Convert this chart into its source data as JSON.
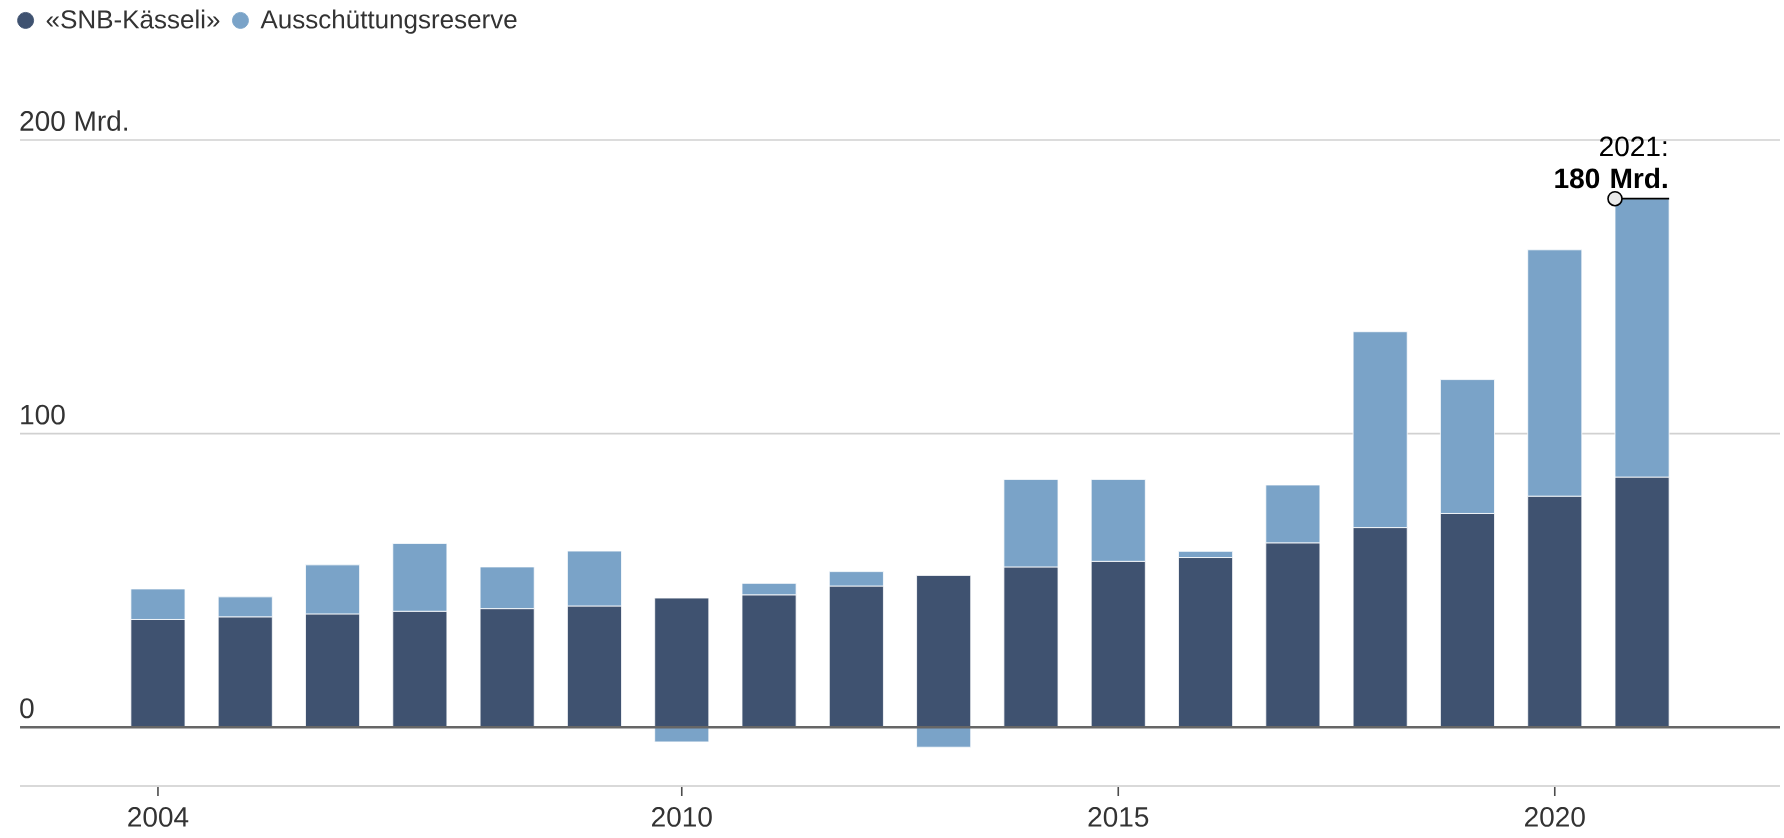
{
  "chart_data": {
    "type": "bar",
    "stacked": true,
    "categories": [
      "2004",
      null,
      null,
      null,
      null,
      null,
      "2010",
      null,
      null,
      null,
      null,
      "2015",
      null,
      null,
      null,
      null,
      "2020",
      null
    ],
    "series": [
      {
        "name": "«SNB-Kässeli»",
        "color": "#3f5270",
        "values": [
          36.7,
          37.6,
          38.6,
          39.5,
          40.4,
          41.3,
          44,
          45.1,
          48.1,
          51.7,
          54.6,
          56.5,
          57.8,
          62.8,
          68,
          72.8,
          78.7,
          85.2
        ]
      },
      {
        "name": "Ausschüttungsreserve",
        "color": "#7aa3c8",
        "values": [
          10.4,
          6.8,
          16.7,
          23.1,
          14.2,
          18.7,
          -5,
          3.9,
          4.9,
          -6.8,
          29.8,
          27.9,
          2.1,
          19.7,
          66.7,
          45.6,
          83.9,
          94.8
        ]
      }
    ],
    "ylim": [
      -20,
      200
    ],
    "yticks": [
      0,
      100,
      {
        "value": 200,
        "label": "200 Mrd."
      }
    ],
    "grid": "y",
    "legend": "top left",
    "annotations": [
      {
        "text": "2021: **180 Mrd.**",
        "y": 180
      }
    ]
  }
}
